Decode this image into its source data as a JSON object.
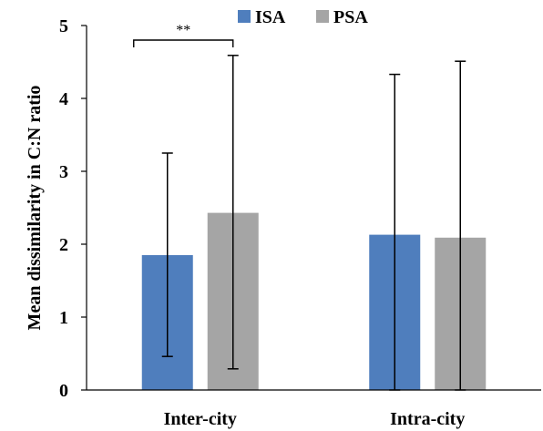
{
  "chart_data": {
    "type": "bar",
    "title": "",
    "xlabel": "",
    "ylabel": "Mean dissimilarity in C:N ratio",
    "ylim": [
      0,
      5
    ],
    "yticks": [
      0,
      1,
      2,
      3,
      4,
      5
    ],
    "grid": false,
    "legend_position": "top",
    "categories": [
      "Inter-city",
      "Intra-city"
    ],
    "series": [
      {
        "name": "ISA",
        "color": "#4F7EBD",
        "values": [
          1.85,
          2.13
        ],
        "err_low": [
          0.46,
          0.0
        ],
        "err_high": [
          3.25,
          4.33
        ]
      },
      {
        "name": "PSA",
        "color": "#A5A5A5",
        "values": [
          2.43,
          2.09
        ],
        "err_low": [
          0.29,
          0.0
        ],
        "err_high": [
          4.59,
          4.51
        ]
      }
    ],
    "annotations": [
      {
        "text": "**",
        "category": "Inter-city",
        "between_series": [
          "ISA",
          "PSA"
        ]
      }
    ]
  }
}
